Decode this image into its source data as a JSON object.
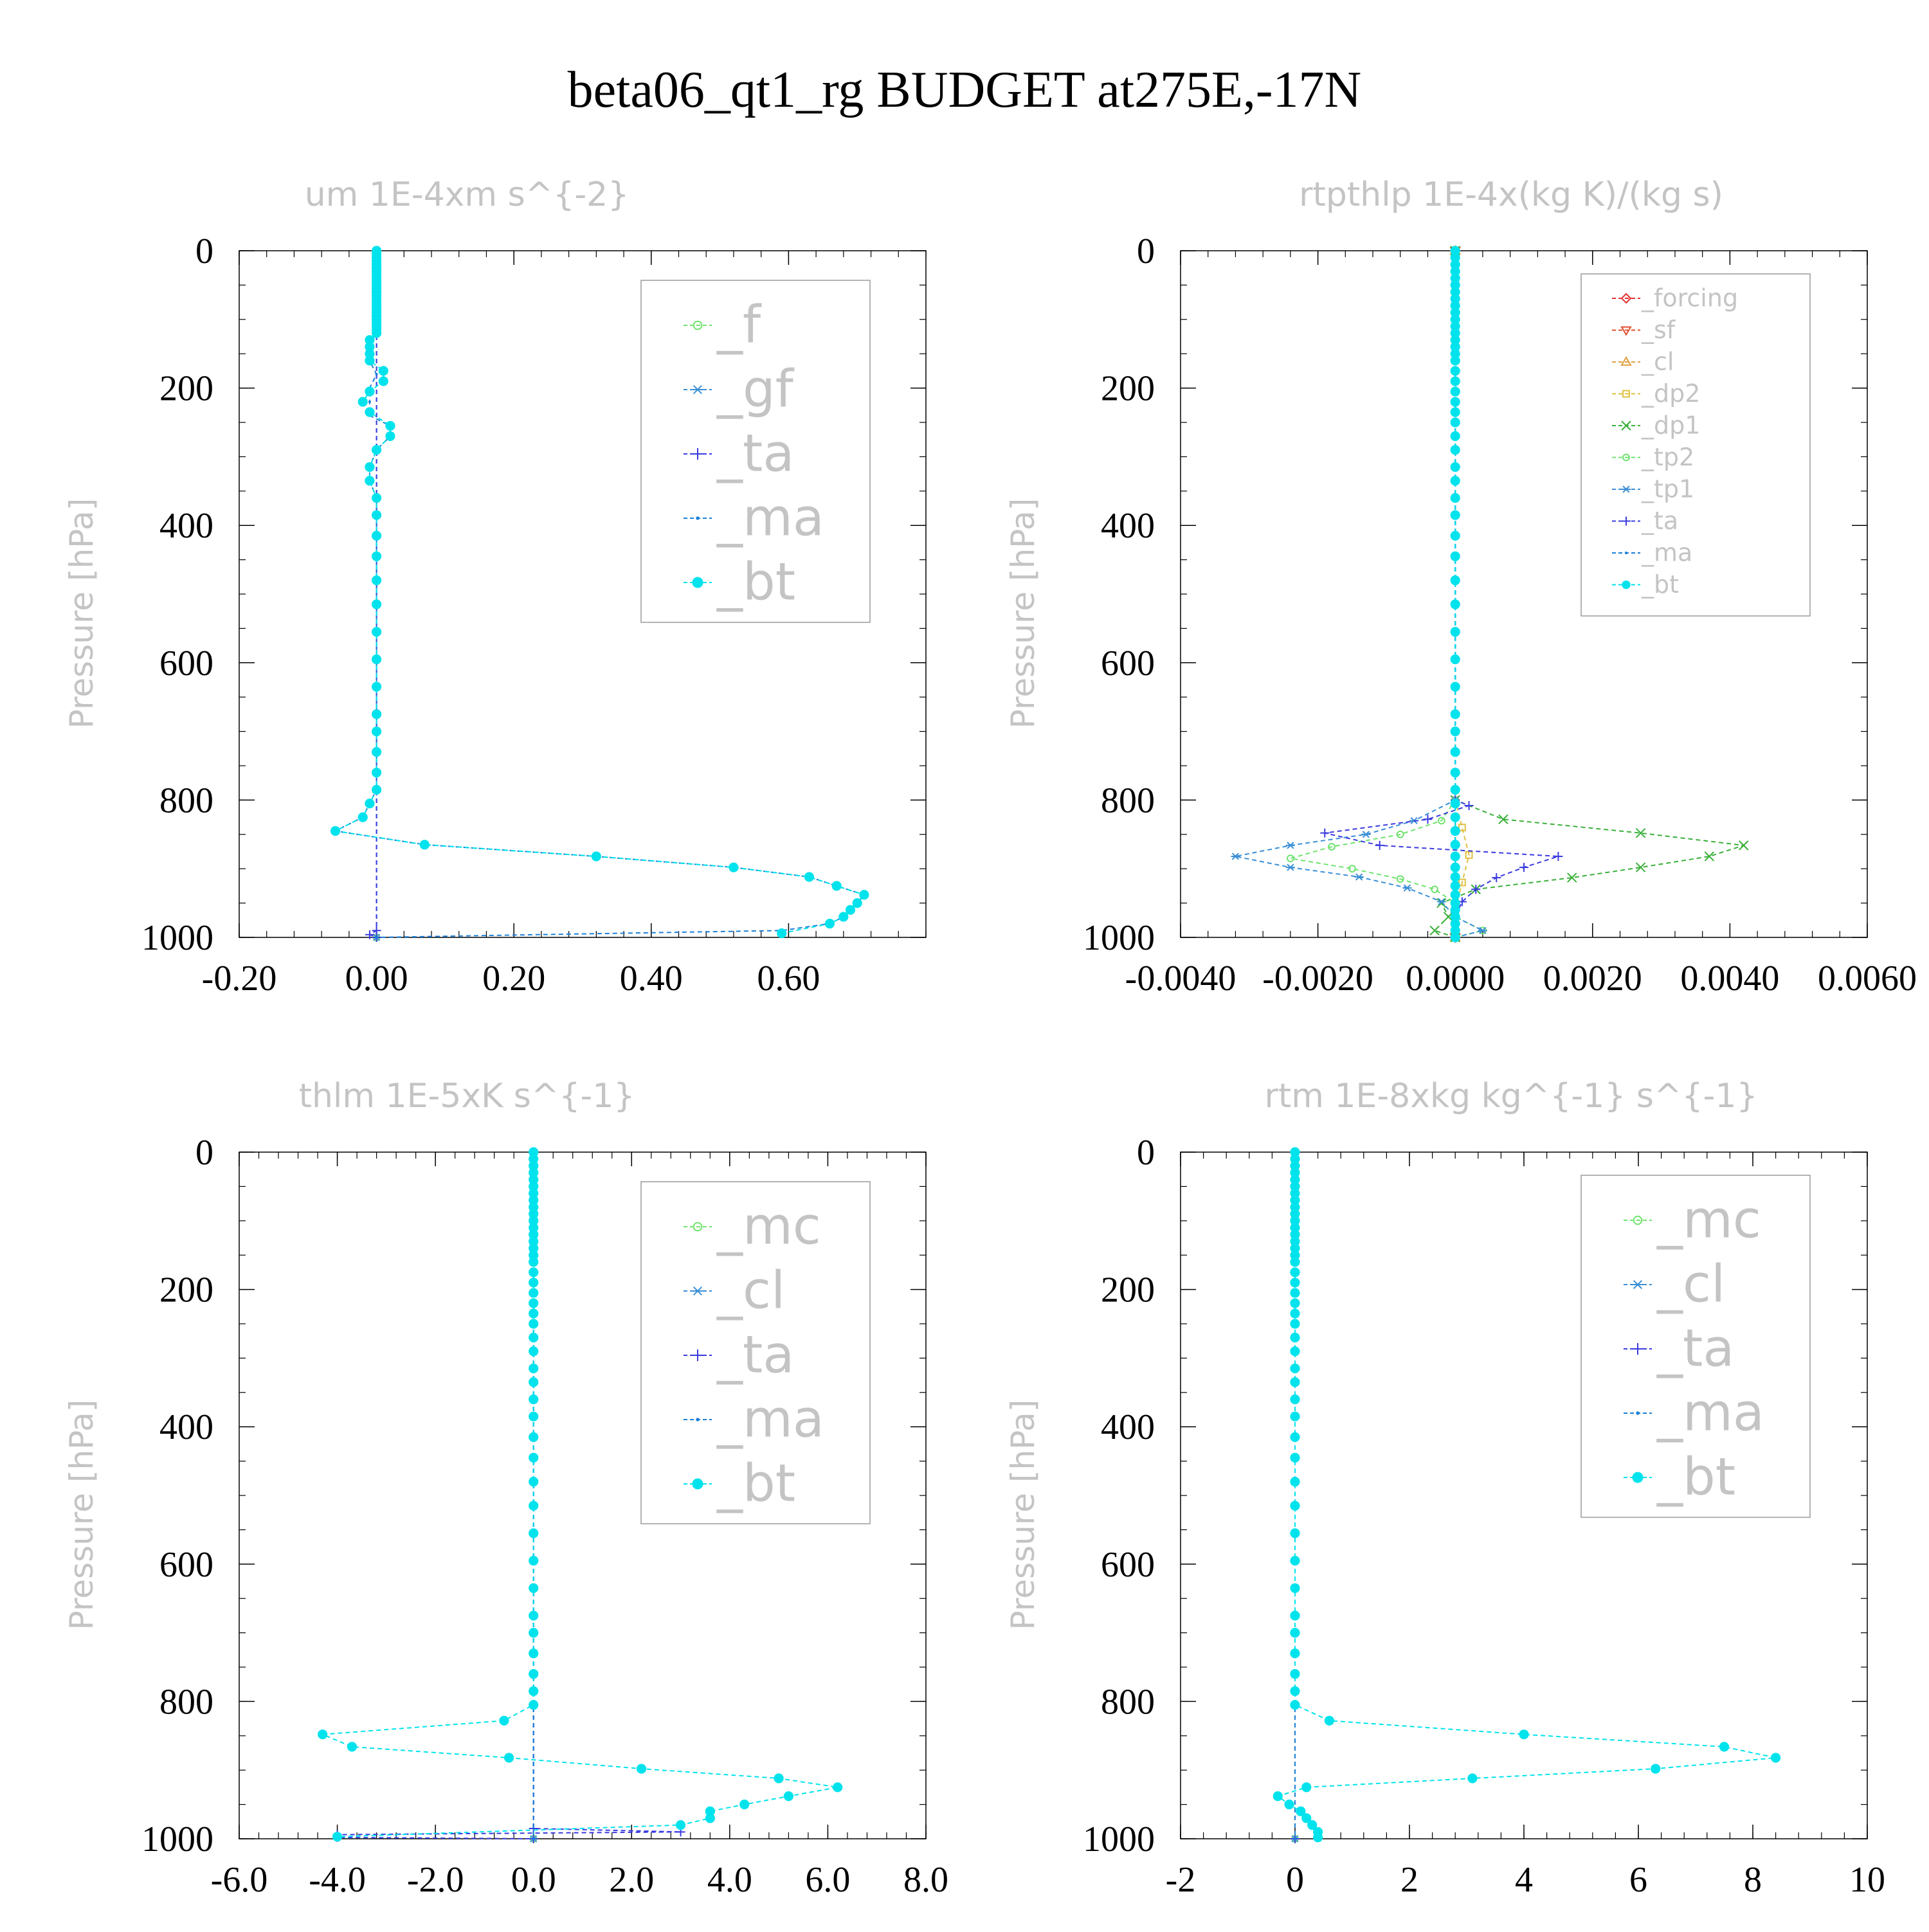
{
  "figure": {
    "title": "beta06_qt1_rg  BUDGET at275E,-17N"
  },
  "chart_data": [
    {
      "type": "line",
      "title": "um  1E-4xm s^{-2}",
      "ylabel": "Pressure [hPa]",
      "xlim": [
        -0.2,
        0.8
      ],
      "ylim": [
        1000,
        0
      ],
      "xticks": [
        -0.2,
        0.0,
        0.2,
        0.4,
        0.6
      ],
      "xtick_labels": [
        "-0.20",
        "0.00",
        "0.20",
        "0.40",
        "0.60"
      ],
      "yticks": [
        0,
        200,
        400,
        600,
        800,
        1000
      ],
      "ytick_labels": [
        "0",
        "200",
        "400",
        "600",
        "800",
        "1000"
      ],
      "legend_position": "top-right",
      "legend_size": "large",
      "series": [
        {
          "name": "_f",
          "color": "#6fe36f",
          "marker": "circle-open",
          "y": [
            0,
            1000
          ],
          "x": [
            0,
            0
          ]
        },
        {
          "name": "_gf",
          "color": "#3a8fd6",
          "marker": "star",
          "y": [
            0,
            1000
          ],
          "x": [
            0,
            0
          ]
        },
        {
          "name": "_ta",
          "color": "#3a3ae0",
          "marker": "plus",
          "y": [
            0,
            990,
            996,
            1000
          ],
          "x": [
            0,
            0,
            -0.01,
            0
          ]
        },
        {
          "name": "_ma",
          "color": "#1a7fd8",
          "marker": "dot",
          "y": [
            0,
            40,
            80,
            120,
            135,
            160,
            180,
            200,
            220,
            240,
            255,
            270,
            290,
            315,
            335,
            360,
            385,
            415,
            445,
            480,
            515,
            555,
            595,
            635,
            675,
            700,
            730,
            760,
            785,
            805,
            825,
            845,
            865,
            882,
            898,
            912,
            925,
            938,
            950,
            960,
            970,
            980,
            990,
            1000
          ],
          "x": [
            0,
            0,
            0,
            0,
            -0.01,
            -0.01,
            0,
            -0.01,
            -0.01,
            -0.01,
            0.02,
            0.02,
            0,
            -0.01,
            -0.01,
            0,
            0,
            0,
            0,
            0,
            0,
            0,
            0,
            0,
            0,
            0,
            0,
            0,
            0,
            -0.01,
            -0.02,
            -0.06,
            0.07,
            0.32,
            0.52,
            0.63,
            0.67,
            0.71,
            0.7,
            0.69,
            0.68,
            0.66,
            0.59,
            0
          ]
        },
        {
          "name": "_bt",
          "color": "#00e3ec",
          "marker": "dot-filled",
          "y": [
            0,
            5,
            10,
            15,
            20,
            25,
            30,
            35,
            40,
            45,
            50,
            55,
            60,
            65,
            70,
            75,
            80,
            85,
            90,
            95,
            100,
            105,
            110,
            115,
            120,
            130,
            140,
            150,
            160,
            175,
            190,
            205,
            220,
            235,
            255,
            270,
            290,
            315,
            335,
            360,
            385,
            415,
            445,
            480,
            515,
            555,
            595,
            635,
            675,
            700,
            730,
            760,
            785,
            805,
            825,
            845,
            865,
            882,
            898,
            912,
            925,
            938,
            950,
            960,
            970,
            980,
            994
          ],
          "x": [
            0,
            0,
            0,
            0,
            0,
            0,
            0,
            0,
            0,
            0,
            0,
            0,
            0,
            0,
            0,
            0,
            0,
            0,
            0,
            0,
            0,
            0,
            0,
            0,
            0,
            -0.01,
            -0.01,
            -0.01,
            -0.01,
            0.01,
            0.01,
            -0.01,
            -0.02,
            -0.01,
            0.02,
            0.02,
            0,
            -0.01,
            -0.01,
            0,
            0,
            0,
            0,
            0,
            0,
            0,
            0,
            0,
            0,
            0,
            0,
            0,
            0,
            -0.01,
            -0.02,
            -0.06,
            0.07,
            0.32,
            0.52,
            0.63,
            0.67,
            0.71,
            0.7,
            0.69,
            0.68,
            0.66,
            0.59
          ]
        }
      ]
    },
    {
      "type": "line",
      "title": "rtpthlp  1E-4x(kg K)/(kg s)",
      "ylabel": "Pressure [hPa]",
      "xlim": [
        -0.004,
        0.006
      ],
      "ylim": [
        1000,
        0
      ],
      "xticks": [
        -0.004,
        -0.002,
        0.0,
        0.002,
        0.004,
        0.006
      ],
      "xtick_labels": [
        "-0.0040",
        "-0.0020",
        "0.0000",
        "0.0020",
        "0.0040",
        "0.0060"
      ],
      "yticks": [
        0,
        200,
        400,
        600,
        800,
        1000
      ],
      "ytick_labels": [
        "0",
        "200",
        "400",
        "600",
        "800",
        "1000"
      ],
      "legend_position": "top-right",
      "legend_size": "small",
      "series": [
        {
          "name": "_forcing",
          "color": "#e03030",
          "marker": "diamond",
          "y": [
            0,
            1000
          ],
          "x": [
            0,
            0
          ]
        },
        {
          "name": "_sf",
          "color": "#e05030",
          "marker": "triangle-down",
          "y": [
            0,
            1000
          ],
          "x": [
            0,
            0
          ]
        },
        {
          "name": "_cl",
          "color": "#e0a040",
          "marker": "triangle-up",
          "y": [
            0,
            1000
          ],
          "x": [
            0,
            0
          ]
        },
        {
          "name": "_dp2",
          "color": "#e0c040",
          "marker": "square",
          "y": [
            0,
            800,
            840,
            880,
            920,
            960,
            1000
          ],
          "x": [
            0,
            0,
            0.0001,
            0.0002,
            0.0001,
            0,
            0
          ]
        },
        {
          "name": "_dp1",
          "color": "#38b038",
          "marker": "x",
          "y": [
            0,
            800,
            828,
            848,
            866,
            882,
            898,
            913,
            930,
            950,
            970,
            990,
            1000
          ],
          "x": [
            0,
            0,
            0.0007,
            0.0027,
            0.0042,
            0.0037,
            0.0027,
            0.0017,
            0.0003,
            -0.0002,
            -0.0001,
            -0.0003,
            0
          ]
        },
        {
          "name": "_tp2",
          "color": "#6fe36f",
          "marker": "circle-open",
          "y": [
            0,
            800,
            830,
            850,
            868,
            885,
            900,
            915,
            930,
            950,
            970,
            990,
            1000
          ],
          "x": [
            0,
            0,
            -0.0002,
            -0.0008,
            -0.0018,
            -0.0024,
            -0.0015,
            -0.0008,
            -0.0003,
            0,
            0,
            0.0004,
            0
          ]
        },
        {
          "name": "_tp1",
          "color": "#3a8fd6",
          "marker": "star",
          "y": [
            0,
            800,
            830,
            850,
            866,
            882,
            898,
            912,
            928,
            948,
            970,
            990,
            1000
          ],
          "x": [
            0,
            0,
            -0.0006,
            -0.0013,
            -0.0024,
            -0.0032,
            -0.0024,
            -0.0014,
            -0.0007,
            -0.0002,
            0,
            0.0004,
            0
          ]
        },
        {
          "name": "_ta",
          "color": "#3a3ae0",
          "marker": "plus",
          "y": [
            0,
            800,
            808,
            828,
            848,
            866,
            882,
            898,
            913,
            930,
            948,
            970,
            1000
          ],
          "x": [
            0,
            0,
            0.0002,
            -0.0004,
            -0.0019,
            -0.0011,
            0.0015,
            0.001,
            0.0006,
            0.0003,
            0.0001,
            0,
            0
          ]
        },
        {
          "name": "_ma",
          "color": "#1a7fd8",
          "marker": "dot",
          "y": [
            0,
            1000
          ],
          "x": [
            0,
            0
          ]
        },
        {
          "name": "_bt",
          "color": "#00e3ec",
          "marker": "dot-filled",
          "y": [
            0,
            10,
            20,
            30,
            40,
            50,
            60,
            70,
            80,
            90,
            100,
            110,
            120,
            130,
            140,
            150,
            160,
            175,
            190,
            205,
            220,
            235,
            250,
            270,
            290,
            315,
            335,
            360,
            385,
            415,
            445,
            480,
            515,
            555,
            595,
            635,
            675,
            700,
            730,
            760,
            785,
            805,
            825,
            845,
            865,
            882,
            898,
            912,
            925,
            938,
            950,
            960,
            970,
            980,
            990,
            1000
          ],
          "x": [
            0,
            0,
            0,
            0,
            0,
            0,
            0,
            0,
            0,
            0,
            0,
            0,
            0,
            0,
            0,
            0,
            0,
            0,
            0,
            0,
            0,
            0,
            0,
            0,
            0,
            0,
            0,
            0,
            0,
            0,
            0,
            0,
            0,
            0,
            0,
            0,
            0,
            0,
            0,
            0,
            0,
            0,
            0,
            0,
            0,
            0,
            0,
            0,
            0,
            0,
            0,
            0,
            0,
            0,
            0,
            0
          ]
        }
      ]
    },
    {
      "type": "line",
      "title": "thlm  1E-5xK s^{-1}",
      "ylabel": "Pressure [hPa]",
      "xlim": [
        -6.0,
        8.0
      ],
      "ylim": [
        1000,
        0
      ],
      "xticks": [
        -6,
        -4,
        -2,
        0,
        2,
        4,
        6,
        8
      ],
      "xtick_labels": [
        "-6.0",
        "-4.0",
        "-2.0",
        "0.0",
        "2.0",
        "4.0",
        "6.0",
        "8.0"
      ],
      "yticks": [
        0,
        200,
        400,
        600,
        800,
        1000
      ],
      "ytick_labels": [
        "0",
        "200",
        "400",
        "600",
        "800",
        "1000"
      ],
      "legend_position": "top-right",
      "legend_size": "large",
      "series": [
        {
          "name": "_mc",
          "color": "#6fe36f",
          "marker": "circle-open",
          "y": [
            0,
            1000
          ],
          "x": [
            0,
            0
          ]
        },
        {
          "name": "_cl",
          "color": "#3a8fd6",
          "marker": "star",
          "y": [
            0,
            1000
          ],
          "x": [
            0,
            0
          ]
        },
        {
          "name": "_ta",
          "color": "#3a3ae0",
          "marker": "plus",
          "y": [
            0,
            985,
            990,
            994,
            998,
            1000
          ],
          "x": [
            0,
            0,
            3.0,
            -4.0,
            -4.0,
            0
          ]
        },
        {
          "name": "_ma",
          "color": "#1a7fd8",
          "marker": "dot",
          "y": [
            0,
            1000
          ],
          "x": [
            0,
            0
          ]
        },
        {
          "name": "_bt",
          "color": "#00e3ec",
          "marker": "dot-filled",
          "y": [
            0,
            10,
            20,
            30,
            40,
            50,
            60,
            70,
            80,
            90,
            100,
            110,
            120,
            130,
            140,
            150,
            160,
            175,
            190,
            205,
            220,
            235,
            250,
            270,
            290,
            315,
            335,
            360,
            385,
            415,
            445,
            480,
            515,
            555,
            595,
            635,
            675,
            700,
            730,
            760,
            785,
            805,
            828,
            848,
            866,
            882,
            898,
            912,
            925,
            938,
            950,
            960,
            970,
            980,
            997
          ],
          "x": [
            0,
            0,
            0,
            0,
            0,
            0,
            0,
            0,
            0,
            0,
            0,
            0,
            0,
            0,
            0,
            0,
            0,
            0,
            0,
            0,
            0,
            0,
            0,
            0,
            0,
            0,
            0,
            0,
            0,
            0,
            0,
            0,
            0,
            0,
            0,
            0,
            0,
            0,
            0,
            0,
            0,
            0,
            -0.6,
            -4.3,
            -3.7,
            -0.5,
            2.2,
            5.0,
            6.2,
            5.2,
            4.3,
            3.6,
            3.6,
            3.0,
            -4.0
          ]
        }
      ]
    },
    {
      "type": "line",
      "title": "rtm  1E-8xkg kg^{-1} s^{-1}",
      "ylabel": "Pressure [hPa]",
      "xlim": [
        -2,
        10
      ],
      "ylim": [
        1000,
        0
      ],
      "xticks": [
        -2,
        0,
        2,
        4,
        6,
        8,
        10
      ],
      "xtick_labels": [
        "-2",
        "0",
        "2",
        "4",
        "6",
        "8",
        "10"
      ],
      "yticks": [
        0,
        200,
        400,
        600,
        800,
        1000
      ],
      "ytick_labels": [
        "0",
        "200",
        "400",
        "600",
        "800",
        "1000"
      ],
      "legend_position": "top-right",
      "legend_size": "large",
      "series": [
        {
          "name": "_mc",
          "color": "#6fe36f",
          "marker": "circle-open",
          "y": [
            0,
            1000
          ],
          "x": [
            0,
            0
          ]
        },
        {
          "name": "_cl",
          "color": "#3a8fd6",
          "marker": "star",
          "y": [
            0,
            1000
          ],
          "x": [
            0,
            0
          ]
        },
        {
          "name": "_ta",
          "color": "#3a3ae0",
          "marker": "plus",
          "y": [
            0,
            1000
          ],
          "x": [
            0,
            0
          ]
        },
        {
          "name": "_ma",
          "color": "#1a7fd8",
          "marker": "dot",
          "y": [
            0,
            1000
          ],
          "x": [
            0,
            0
          ]
        },
        {
          "name": "_bt",
          "color": "#00e3ec",
          "marker": "dot-filled",
          "y": [
            0,
            10,
            20,
            30,
            40,
            50,
            60,
            70,
            80,
            90,
            100,
            110,
            120,
            130,
            140,
            150,
            160,
            175,
            190,
            205,
            220,
            235,
            250,
            270,
            290,
            315,
            335,
            360,
            385,
            415,
            445,
            480,
            515,
            555,
            595,
            635,
            675,
            700,
            730,
            760,
            785,
            805,
            828,
            848,
            866,
            882,
            898,
            912,
            925,
            938,
            950,
            960,
            970,
            980,
            990,
            998
          ],
          "x": [
            0,
            0,
            0,
            0,
            0,
            0,
            0,
            0,
            0,
            0,
            0,
            0,
            0,
            0,
            0,
            0,
            0,
            0,
            0,
            0,
            0,
            0,
            0,
            0,
            0,
            0,
            0,
            0,
            0,
            0,
            0,
            0,
            0,
            0,
            0,
            0,
            0,
            0,
            0,
            0,
            0,
            0,
            0.6,
            4.0,
            7.5,
            8.4,
            6.3,
            3.1,
            0.2,
            -0.3,
            -0.1,
            0.1,
            0.2,
            0.3,
            0.4,
            0.4
          ]
        }
      ]
    }
  ]
}
